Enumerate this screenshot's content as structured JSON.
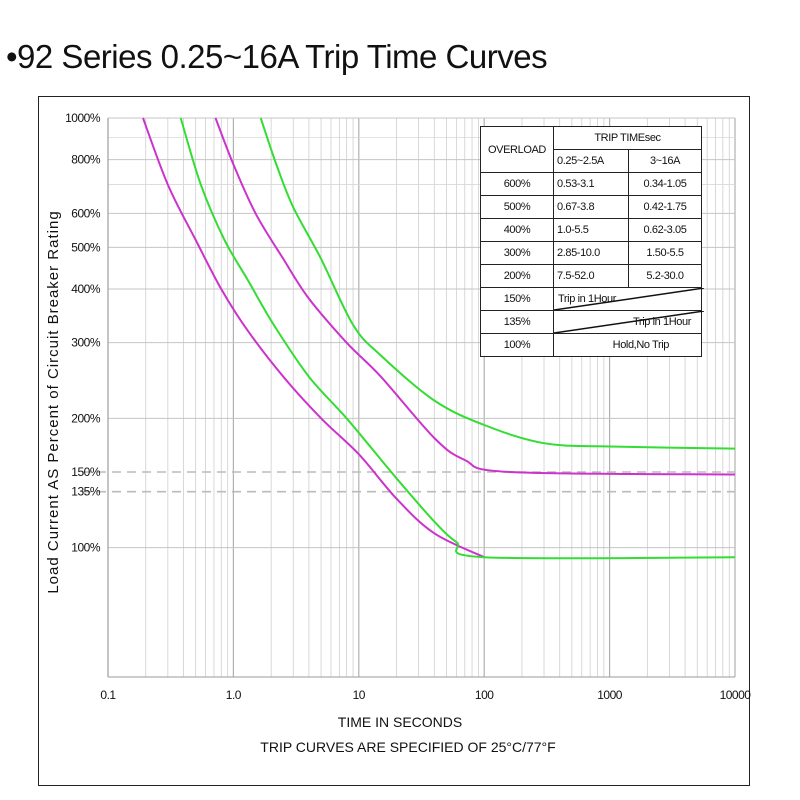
{
  "title": "•92 Series 0.25~16A Trip Time Curves",
  "chart_data": {
    "type": "line",
    "xlabel": "TIME IN SECONDS",
    "footnote": "TRIP CURVES ARE SPECIFIED OF 25°C/77°F",
    "ylabel": "Load Current AS Percent of Circuit Breaker Rating",
    "x_scale": "log",
    "xlim": [
      0.1,
      10000
    ],
    "ylim": [
      50,
      1000
    ],
    "x_ticks": [
      "0.1",
      "1.0",
      "10",
      "100",
      "1000",
      "10000"
    ],
    "y_ticks": [
      {
        "label": "1000%",
        "value": 1000
      },
      {
        "label": "800%",
        "value": 800
      },
      {
        "label": "600%",
        "value": 600
      },
      {
        "label": "500%",
        "value": 500
      },
      {
        "label": "400%",
        "value": 400
      },
      {
        "label": "300%",
        "value": 300
      },
      {
        "label": "200%",
        "value": 200
      },
      {
        "label": "150%",
        "value": 150
      },
      {
        "label": "135%",
        "value": 135
      },
      {
        "label": "100%",
        "value": 100
      }
    ],
    "reference_lines": [
      150,
      135
    ],
    "grid": true,
    "series": [
      {
        "color": "#cc33cc",
        "points": [
          [
            0.19,
            1000
          ],
          [
            0.3,
            700
          ],
          [
            0.5,
            520
          ],
          [
            0.8,
            400
          ],
          [
            1.3,
            320
          ],
          [
            2.5,
            250
          ],
          [
            5,
            200
          ],
          [
            10,
            165
          ],
          [
            20,
            130
          ],
          [
            40,
            108
          ],
          [
            100,
            95
          ]
        ]
      },
      {
        "color": "#33dd33",
        "points": [
          [
            0.38,
            1000
          ],
          [
            0.55,
            700
          ],
          [
            0.85,
            520
          ],
          [
            1.3,
            420
          ],
          [
            2.1,
            330
          ],
          [
            4,
            250
          ],
          [
            8,
            200
          ],
          [
            20,
            145
          ],
          [
            40,
            115
          ],
          [
            60,
            103
          ],
          [
            100,
            95
          ],
          [
            10000,
            95
          ]
        ]
      },
      {
        "color": "#cc33cc",
        "points": [
          [
            0.72,
            1000
          ],
          [
            1.0,
            780
          ],
          [
            1.5,
            600
          ],
          [
            2.5,
            470
          ],
          [
            4,
            380
          ],
          [
            8,
            300
          ],
          [
            15,
            250
          ],
          [
            40,
            180
          ],
          [
            70,
            160
          ],
          [
            160,
            150
          ],
          [
            10000,
            148
          ]
        ]
      },
      {
        "color": "#33dd33",
        "points": [
          [
            1.65,
            1000
          ],
          [
            2.2,
            780
          ],
          [
            3,
            620
          ],
          [
            5,
            470
          ],
          [
            9,
            330
          ],
          [
            15,
            280
          ],
          [
            40,
            220
          ],
          [
            100,
            193
          ],
          [
            300,
            175
          ],
          [
            1000,
            172
          ],
          [
            10000,
            170
          ]
        ]
      }
    ]
  },
  "trip_table": {
    "header_overload": "OVERLOAD",
    "header_trip_time": "TRIP TIMEsec",
    "header_col1": "0.25~2.5A",
    "header_col2": "3~16A",
    "rows": [
      {
        "overload": "600%",
        "col1": "0.53-3.1",
        "col2": "0.34-1.05"
      },
      {
        "overload": "500%",
        "col1": "0.67-3.8",
        "col2": "0.42-1.75"
      },
      {
        "overload": "400%",
        "col1": "1.0-5.5",
        "col2": "0.62-3.05"
      },
      {
        "overload": "300%",
        "col1": "2.85-10.0",
        "col2": "1.50-5.5"
      },
      {
        "overload": "200%",
        "col1": "7.5-52.0",
        "col2": "5.2-30.0"
      }
    ],
    "row_150": {
      "overload": "150%",
      "text": "Trip in 1Hour"
    },
    "row_135": {
      "overload": "135%",
      "text": "Trip in 1Hour"
    },
    "row_100": {
      "overload": "100%",
      "text": "Hold,No Trip"
    }
  }
}
